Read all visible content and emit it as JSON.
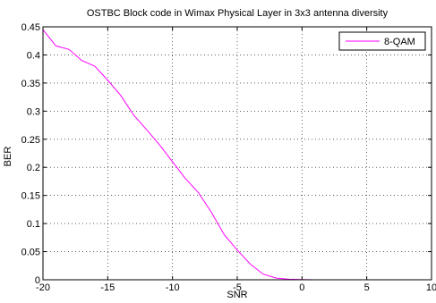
{
  "chart_data": {
    "type": "line",
    "title": "OSTBC Block code in Wimax Physical Layer in 3x3 antenna diversity",
    "xlabel": "SNR",
    "ylabel": "BER",
    "xlim": [
      -20,
      10
    ],
    "ylim": [
      0,
      0.45
    ],
    "xticks": [
      -20,
      -15,
      -10,
      -5,
      0,
      5,
      10
    ],
    "yticks": [
      0,
      0.05,
      0.1,
      0.15,
      0.2,
      0.25,
      0.3,
      0.35,
      0.4,
      0.45
    ],
    "xtick_labels": [
      "-20",
      "-15",
      "-10",
      "-5",
      "0",
      "5",
      "10"
    ],
    "ytick_labels": [
      "0",
      "0.05",
      "0.1",
      "0.15",
      "0.2",
      "0.25",
      "0.3",
      "0.35",
      "0.4",
      "0.45"
    ],
    "grid": true,
    "legend_position": "top-right",
    "series": [
      {
        "name": "8-QAM",
        "color": "#ff00ff",
        "x": [
          -20,
          -19,
          -18,
          -17,
          -16,
          -15,
          -14,
          -13,
          -12,
          -11,
          -10,
          -9,
          -8,
          -7,
          -6,
          -5,
          -4,
          -3,
          -2,
          -1,
          0,
          1,
          2,
          3,
          4,
          5,
          6,
          7,
          8,
          9,
          10
        ],
        "y": [
          0.445,
          0.416,
          0.41,
          0.39,
          0.38,
          0.355,
          0.328,
          0.293,
          0.267,
          0.24,
          0.21,
          0.18,
          0.155,
          0.12,
          0.08,
          0.053,
          0.028,
          0.01,
          0.003,
          0.001,
          0.0005,
          0.0001,
          0,
          0,
          0,
          0,
          0,
          0,
          0,
          0,
          0
        ]
      }
    ]
  }
}
